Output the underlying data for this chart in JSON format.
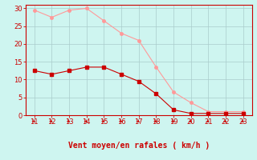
{
  "xlabel": "Vent moyen/en rafales ( km/h )",
  "bg_color": "#cef5f0",
  "grid_color": "#aacccc",
  "x_ticks": [
    11,
    12,
    13,
    14,
    15,
    16,
    17,
    18,
    19,
    20,
    21,
    22,
    23
  ],
  "y_ticks": [
    0,
    5,
    10,
    15,
    20,
    25,
    30
  ],
  "ylim": [
    0,
    31
  ],
  "xlim": [
    10.5,
    23.5
  ],
  "line1_x": [
    11,
    12,
    13,
    14,
    15,
    16,
    17,
    18,
    19,
    20,
    21,
    22,
    23
  ],
  "line1_y": [
    12.5,
    11.5,
    12.5,
    13.5,
    13.5,
    11.5,
    9.5,
    6.0,
    1.5,
    0.5,
    0.5,
    0.5,
    0.5
  ],
  "line2_x": [
    11,
    12,
    13,
    14,
    15,
    16,
    17,
    18,
    19,
    20,
    21,
    22,
    23
  ],
  "line2_y": [
    29.5,
    27.5,
    29.5,
    30.0,
    26.5,
    23.0,
    21.0,
    13.5,
    6.5,
    3.5,
    1.0,
    1.0,
    1.0
  ],
  "line1_color": "#cc0000",
  "line2_color": "#ff9999",
  "xlabel_color": "#cc0000",
  "tick_color": "#cc0000",
  "spine_color": "#cc0000",
  "arrow_color": "#cc0000"
}
